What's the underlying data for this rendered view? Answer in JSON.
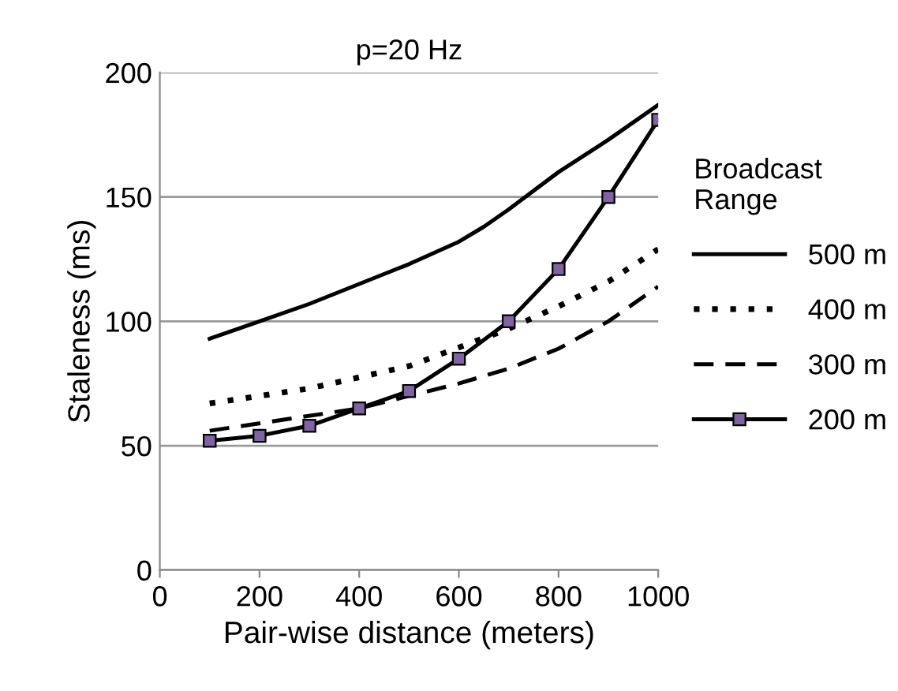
{
  "chart_data": {
    "type": "line",
    "title": "p=20 Hz",
    "xlabel": "Pair-wise distance (meters)",
    "ylabel": "Staleness (ms)",
    "legend_title": "Broadcast\nRange",
    "xlim": [
      0,
      1000
    ],
    "xticks": [
      0,
      200,
      400,
      600,
      800,
      1000
    ],
    "ylim": [
      0,
      200
    ],
    "yticks": [
      0,
      50,
      100,
      150,
      200
    ],
    "grid": "y",
    "legend": "right",
    "series": [
      {
        "name": "500 m",
        "color": "#000000",
        "line_style": "solid",
        "marker": "none",
        "x": [
          100,
          200,
          300,
          400,
          500,
          600,
          650,
          700,
          800,
          900,
          1000
        ],
        "values": [
          93,
          100,
          107,
          115,
          123,
          132,
          138,
          145,
          160,
          173,
          187
        ]
      },
      {
        "name": "400 m",
        "color": "#000000",
        "line_style": "dotted",
        "marker": "none",
        "x": [
          100,
          300,
          500,
          700,
          800,
          900,
          1000
        ],
        "values": [
          67,
          73,
          82,
          97,
          106,
          116,
          129
        ]
      },
      {
        "name": "300 m",
        "color": "#000000",
        "line_style": "dashed",
        "marker": "none",
        "x": [
          100,
          400,
          600,
          700,
          800,
          900,
          1000
        ],
        "values": [
          56,
          65,
          75,
          81,
          89,
          100,
          114
        ]
      },
      {
        "name": "200 m",
        "color": "#000000",
        "line_style": "solid",
        "marker": "square",
        "x": [
          100,
          200,
          300,
          400,
          500,
          600,
          700,
          800,
          900,
          1000
        ],
        "values": [
          52,
          54,
          58,
          65,
          72,
          85,
          100,
          121,
          150,
          181
        ]
      }
    ]
  }
}
